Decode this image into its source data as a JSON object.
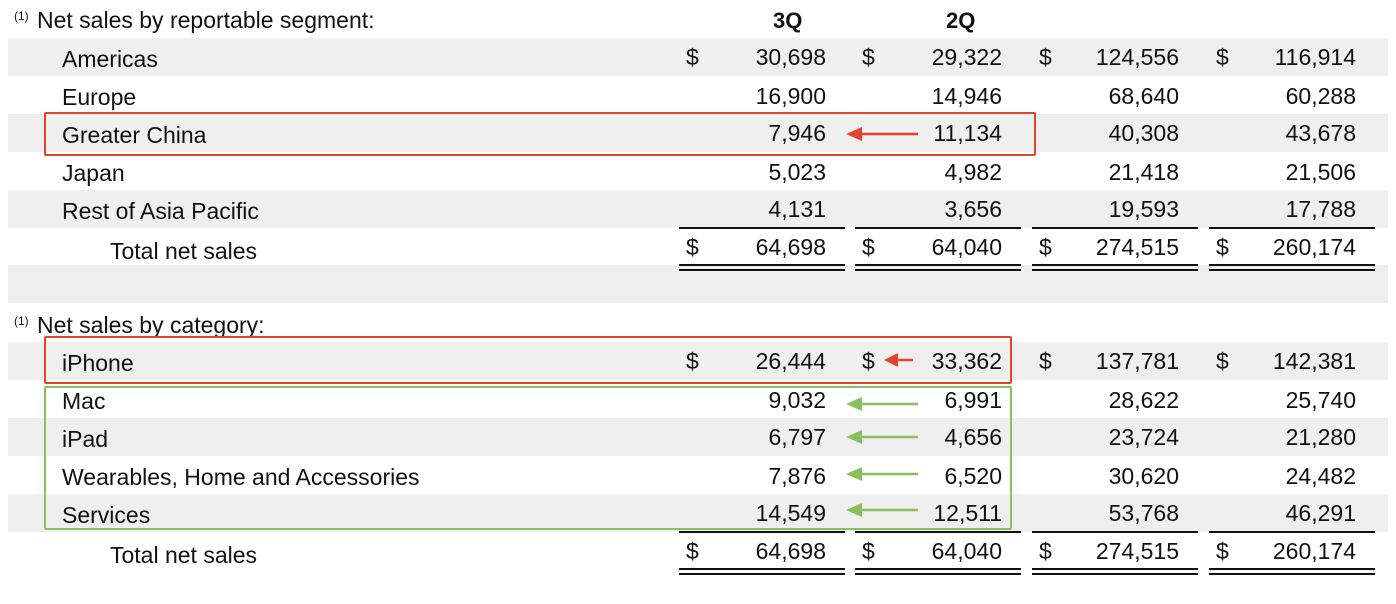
{
  "segment": {
    "title": "Net sales by reportable segment:",
    "footnote": "(1)",
    "col_headers": [
      "3Q",
      "2Q"
    ],
    "rows": [
      {
        "label": "Americas",
        "values": [
          "30,698",
          "29,322",
          "124,556",
          "116,914"
        ],
        "dollar": true
      },
      {
        "label": "Europe",
        "values": [
          "16,900",
          "14,946",
          "68,640",
          "60,288"
        ],
        "dollar": false
      },
      {
        "label": "Greater China",
        "values": [
          "7,946",
          "11,134",
          "40,308",
          "43,678"
        ],
        "dollar": false
      },
      {
        "label": "Japan",
        "values": [
          "5,023",
          "4,982",
          "21,418",
          "21,506"
        ],
        "dollar": false
      },
      {
        "label": "Rest of Asia Pacific",
        "values": [
          "4,131",
          "3,656",
          "19,593",
          "17,788"
        ],
        "dollar": false
      }
    ],
    "total": {
      "label": "Total net sales",
      "values": [
        "64,698",
        "64,040",
        "274,515",
        "260,174"
      ]
    }
  },
  "category": {
    "title": "Net sales by category:",
    "footnote": "(1)",
    "rows": [
      {
        "label": "iPhone",
        "values": [
          "26,444",
          "33,362",
          "137,781",
          "142,381"
        ],
        "dollar": true
      },
      {
        "label": "Mac",
        "values": [
          "9,032",
          "6,991",
          "28,622",
          "25,740"
        ],
        "dollar": false
      },
      {
        "label": "iPad",
        "values": [
          "6,797",
          "4,656",
          "23,724",
          "21,280"
        ],
        "dollar": false
      },
      {
        "label": "Wearables, Home and Accessories",
        "values": [
          "7,876",
          "6,520",
          "30,620",
          "24,482"
        ],
        "dollar": false
      },
      {
        "label": "Services",
        "values": [
          "14,549",
          "12,511",
          "53,768",
          "46,291"
        ],
        "dollar": false
      }
    ],
    "total": {
      "label": "Total net sales",
      "values": [
        "64,698",
        "64,040",
        "274,515",
        "260,174"
      ]
    }
  },
  "currency_symbol": "$",
  "colors": {
    "highlight_red": "#e2442f",
    "highlight_green": "#86c15e",
    "band": "#efefef"
  }
}
